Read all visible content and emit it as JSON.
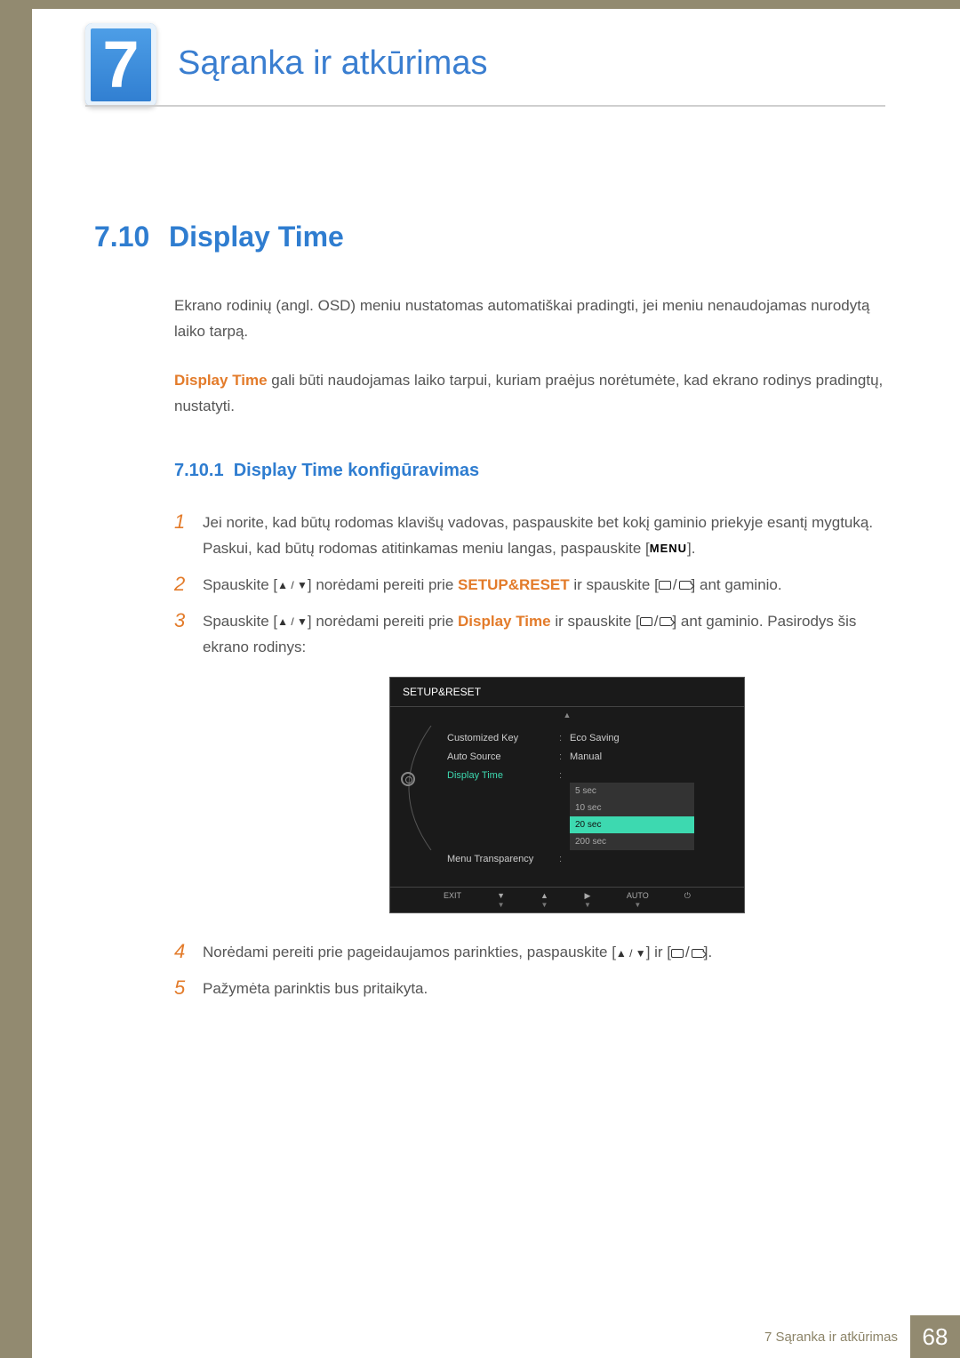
{
  "chapter": {
    "number": "7",
    "title": "Sąranka ir atkūrimas"
  },
  "section": {
    "number": "7.10",
    "title": "Display Time"
  },
  "intro_p1": "Ekrano rodinių (angl. OSD) meniu nustatomas automatiškai pradingti, jei meniu nenaudojamas nurodytą laiko tarpą.",
  "intro_p2_prefix": "Display Time",
  "intro_p2_rest": " gali būti naudojamas laiko tarpui, kuriam praėjus norėtumėte, kad ekrano rodinys pradingtų, nustatyti.",
  "subsection": {
    "number": "7.10.1",
    "title": "Display Time konfigūravimas"
  },
  "steps": {
    "s1a": "Jei norite, kad būtų rodomas klavišų vadovas, paspauskite bet kokį gaminio priekyje esantį mygtuką. Paskui, kad būtų rodomas atitinkamas meniu langas, paspauskite [",
    "s1b": "].",
    "s2a": "Spauskite [",
    "s2b": "] norėdami pereiti prie ",
    "s2c": "SETUP&RESET",
    "s2d": " ir spauskite [",
    "s2e": "] ant gaminio.",
    "s3a": "Spauskite [",
    "s3b": "] norėdami pereiti prie ",
    "s3c": "Display Time",
    "s3d": " ir spauskite [",
    "s3e": "] ant gaminio. Pasirodys šis ekrano rodinys:",
    "s4a": "Norėdami pereiti prie pageidaujamos parinkties, paspauskite [",
    "s4b": "] ir [",
    "s4c": "].",
    "s5": "Pažymėta parinktis bus pritaikyta."
  },
  "menu_label": "MENU",
  "osd": {
    "title": "SETUP&RESET",
    "rows": [
      {
        "label": "Customized Key",
        "value": "Eco Saving",
        "active": false
      },
      {
        "label": "Auto Source",
        "value": "Manual",
        "active": false
      },
      {
        "label": "Display Time",
        "value": "",
        "active": true
      },
      {
        "label": "Menu Transparency",
        "value": "",
        "active": false
      }
    ],
    "options": [
      {
        "label": "5 sec",
        "selected": false
      },
      {
        "label": "10 sec",
        "selected": false
      },
      {
        "label": "20 sec",
        "selected": true
      },
      {
        "label": "200 sec",
        "selected": false
      }
    ],
    "footer": [
      "EXIT",
      "",
      "",
      "",
      "AUTO",
      ""
    ],
    "footer_syms": [
      "",
      "▼",
      "▲",
      "▶",
      "",
      "⏻"
    ],
    "footer_sub": [
      "",
      "▼",
      "▼",
      "▼",
      "▼",
      ""
    ]
  },
  "footer": {
    "text": "7 Sąranka ir atkūrimas",
    "page": "68"
  },
  "colors": {
    "brand_blue": "#2f7dd0",
    "orange": "#e37b2a",
    "olive": "#928a70",
    "osd_teal": "#3dd9b0"
  }
}
